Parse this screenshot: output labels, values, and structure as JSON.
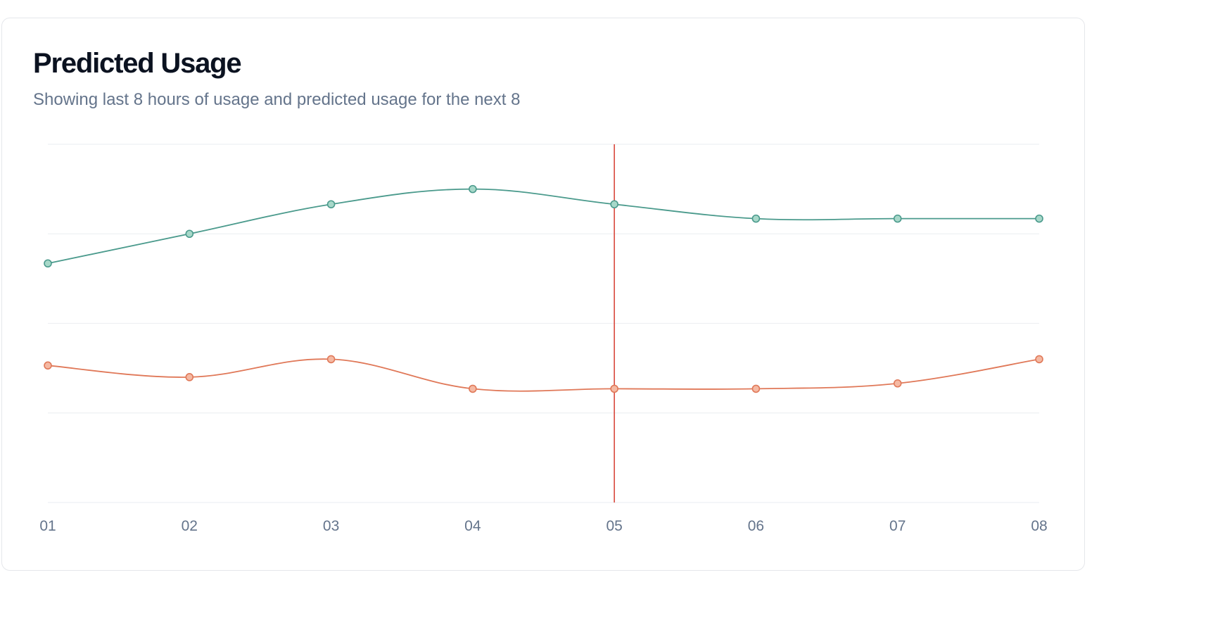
{
  "card": {
    "title": "Predicted Usage",
    "subtitle": "Showing last 8 hours of usage and predicted usage for the next 8"
  },
  "chart_data": {
    "type": "line",
    "title": "Predicted Usage",
    "subtitle": "Showing last 8 hours of usage and predicted usage for the next 8",
    "x": [
      "01",
      "02",
      "03",
      "04",
      "05",
      "06",
      "07",
      "08"
    ],
    "series": [
      {
        "color": "#4a9a8c",
        "fill": "#a7d8c9",
        "values": [
          267,
          300,
          333,
          350,
          333,
          317,
          317,
          317
        ]
      },
      {
        "color": "#e07858",
        "fill": "#f5b9a3",
        "values": [
          153,
          140,
          160,
          127,
          127,
          127,
          133,
          160
        ]
      }
    ],
    "ylim": [
      0,
      400
    ],
    "y_gridlines": [
      0,
      100,
      200,
      300,
      400
    ],
    "marker": {
      "x": "05",
      "color": "#d9473b"
    },
    "grid": true,
    "legend": "none",
    "curve": "smooth"
  }
}
